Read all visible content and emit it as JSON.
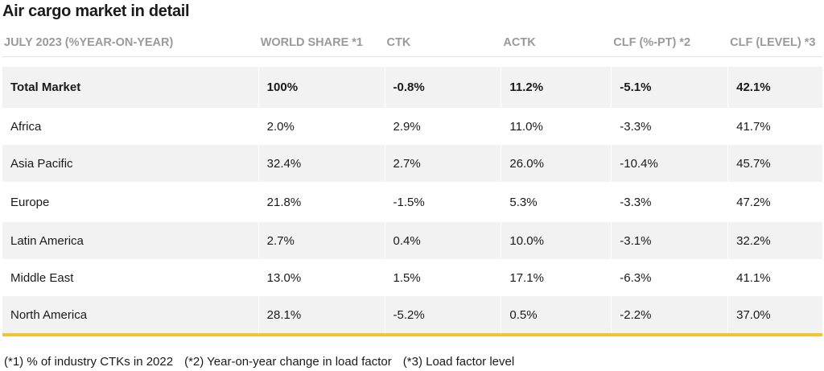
{
  "title": "Air cargo market in detail",
  "headers": [
    "JULY 2023 (%YEAR-ON-YEAR)",
    "WORLD SHARE *1",
    "CTK",
    "ACTK",
    "CLF (%-PT) *2",
    "CLF (LEVEL) *3"
  ],
  "rows": [
    {
      "region": "Total Market",
      "share": "100%",
      "ctk": "-0.8%",
      "actk": "11.2%",
      "clf_pt": "-5.1%",
      "clf_level": "42.1%"
    },
    {
      "region": "Africa",
      "share": "2.0%",
      "ctk": "2.9%",
      "actk": "11.0%",
      "clf_pt": "-3.3%",
      "clf_level": "41.7%"
    },
    {
      "region": "Asia Pacific",
      "share": "32.4%",
      "ctk": "2.7%",
      "actk": "26.0%",
      "clf_pt": "-10.4%",
      "clf_level": "45.7%"
    },
    {
      "region": "Europe",
      "share": "21.8%",
      "ctk": "-1.5%",
      "actk": "5.3%",
      "clf_pt": "-3.3%",
      "clf_level": "47.2%"
    },
    {
      "region": "Latin America",
      "share": "2.7%",
      "ctk": "0.4%",
      "actk": "10.0%",
      "clf_pt": "-3.1%",
      "clf_level": "32.2%"
    },
    {
      "region": "Middle East",
      "share": "13.0%",
      "ctk": "1.5%",
      "actk": "17.1%",
      "clf_pt": "-6.3%",
      "clf_level": "41.1%"
    },
    {
      "region": "North America",
      "share": "28.1%",
      "ctk": "-5.2%",
      "actk": "0.5%",
      "clf_pt": "-2.2%",
      "clf_level": "37.0%"
    }
  ],
  "footnotes": [
    "(*1) % of industry CTKs in 2022",
    "(*2) Year-on-year change in load factor",
    "(*3) Load factor level"
  ],
  "colors": {
    "accent_line": "#f4c430",
    "shade": "#f2f2f2",
    "header_text": "#9a9a9a"
  }
}
